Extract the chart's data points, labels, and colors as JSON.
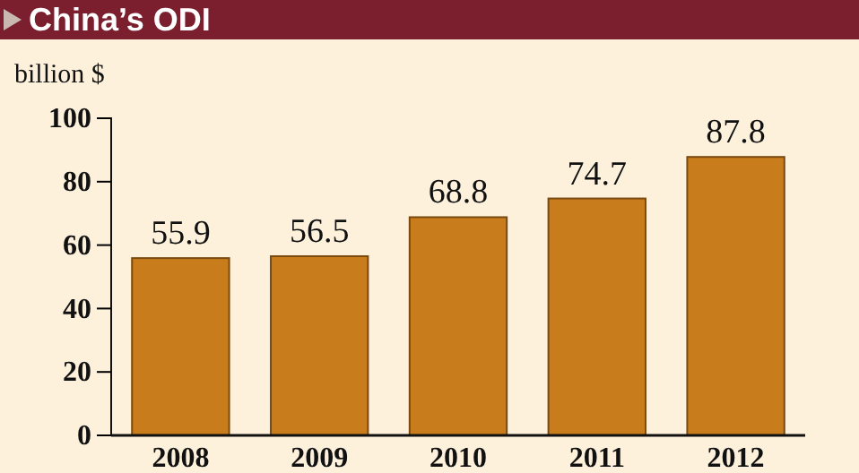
{
  "chart_data": {
    "type": "bar",
    "title": "China’s ODI",
    "ylabel": "billion $",
    "categories": [
      "2008",
      "2009",
      "2010",
      "2011",
      "2012"
    ],
    "values": [
      55.9,
      56.5,
      68.8,
      74.7,
      87.8
    ],
    "color": "#c97c1c",
    "ylim": [
      0,
      100
    ],
    "yticks": [
      0,
      20,
      40,
      60,
      80,
      100
    ],
    "grid": false,
    "data_labels": true
  }
}
